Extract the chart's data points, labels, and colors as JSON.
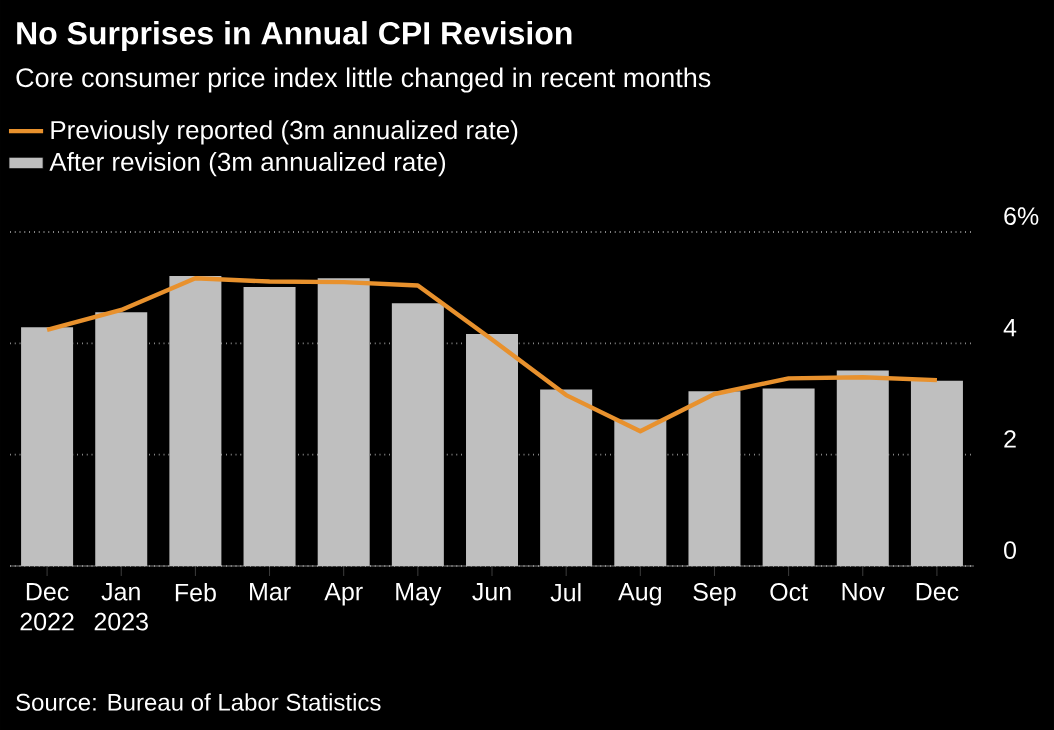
{
  "chart_data": {
    "type": "bar",
    "title": "No Surprises in Annual CPI Revision",
    "subtitle": "Core consumer price index little changed in recent months",
    "categories": [
      "Dec 2022",
      "Jan 2023",
      "Feb",
      "Mar",
      "Apr",
      "May",
      "Jun",
      "Jul",
      "Aug",
      "Sep",
      "Oct",
      "Nov",
      "Dec"
    ],
    "series": [
      {
        "name": "After revision (3m annualized rate)",
        "color": "#bfbfbf",
        "values": [
          4.29,
          4.56,
          5.21,
          5.01,
          5.17,
          4.72,
          4.17,
          3.17,
          2.63,
          3.14,
          3.19,
          3.51,
          3.33
        ]
      },
      {
        "name": "Previously reported (3m annualized rate)",
        "type": "line",
        "color": "#e8912d",
        "values": [
          4.24,
          4.6,
          5.17,
          5.11,
          5.1,
          5.04,
          4.07,
          3.07,
          2.42,
          3.09,
          3.37,
          3.39,
          3.34
        ]
      }
    ],
    "ylim": [
      0,
      6
    ],
    "yticks": [
      0,
      2,
      4,
      {
        "value": 6,
        "label": "6%"
      }
    ],
    "grid": "y",
    "legend": "top left",
    "annotations": [
      "Source: Bureau of Labor Statistics"
    ]
  }
}
